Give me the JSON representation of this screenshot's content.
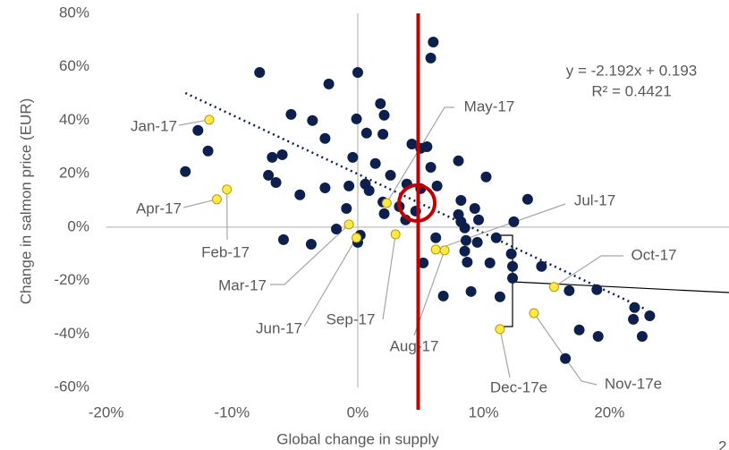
{
  "chart_data": {
    "type": "scatter",
    "x_label": "Global change in supply",
    "y_label": "Change in salmon price (EUR)",
    "xlim": [
      -20,
      29.5
    ],
    "ylim": [
      -60,
      80
    ],
    "xticks": [
      {
        "value": -20,
        "label": "-20%"
      },
      {
        "value": -10,
        "label": "-10%"
      },
      {
        "value": 0,
        "label": "0%"
      },
      {
        "value": 10,
        "label": "10%"
      },
      {
        "value": 20,
        "label": "20%"
      }
    ],
    "yticks": [
      {
        "value": -60,
        "label": "-60%"
      },
      {
        "value": -40,
        "label": "-40%"
      },
      {
        "value": -20,
        "label": "-20%"
      },
      {
        "value": 0,
        "label": "0%"
      },
      {
        "value": 20,
        "label": "20%"
      },
      {
        "value": 40,
        "label": "40%"
      },
      {
        "value": 60,
        "label": "60%"
      },
      {
        "value": 80,
        "label": "80%"
      }
    ],
    "series": [
      {
        "color": "#0d1f4d",
        "x": [
          6.0,
          5.8,
          -7.8,
          0,
          -2.3,
          1.8,
          2.1,
          -5.3,
          -3.6,
          -0.1,
          -12.7,
          0.7,
          -2.6,
          2.0,
          4.3,
          5.0,
          5.5,
          -11.9,
          -6.8,
          -6.0,
          -0.4,
          1.4,
          5.8,
          8.0,
          -13.7,
          -7.1,
          -6.5,
          -4.6,
          -2.6,
          -0.7,
          0.6,
          0.9,
          2.6,
          3.9,
          5.0,
          6.3,
          10.2,
          2.0,
          3.3,
          4.6,
          2.1,
          3.8,
          8.2,
          9.3,
          8.0,
          8.2,
          9.6,
          8.5,
          12.4,
          13.5,
          -0.9,
          -1.7,
          0.2,
          0,
          -5.9,
          -3.7,
          5.2,
          6.2,
          8.6,
          9.5,
          8.5,
          8.7,
          11.0,
          10.5,
          12.2,
          12.3,
          12.3,
          14.6,
          9.0,
          6.8,
          11.3,
          16.8,
          19.0,
          22.0,
          23.2,
          21.9,
          17.6,
          19.1,
          22.6,
          16.5
        ],
        "values": [
          69.3,
          63.3,
          57.9,
          57.9,
          53.6,
          46.2,
          41.9,
          42.2,
          39.9,
          40.5,
          36.2,
          35.2,
          33.2,
          34.8,
          31.1,
          29.5,
          30.1,
          28.5,
          26.1,
          27.1,
          26.1,
          23.8,
          22.4,
          24.8,
          20.8,
          19.4,
          16.7,
          12.1,
          14.7,
          15.4,
          16.1,
          13.7,
          19.4,
          16.1,
          14.4,
          15.4,
          18.8,
          9.4,
          7.7,
          6.0,
          5.0,
          2.7,
          10.0,
          7.0,
          4.7,
          2.0,
          2.7,
          -0.3,
          2.0,
          10.4,
          7.0,
          -0.7,
          -3.0,
          -5.7,
          -4.7,
          -6.4,
          -13.4,
          -4.0,
          -5.0,
          -5.7,
          -9.0,
          -13.1,
          -4.0,
          -13.4,
          -10.0,
          -14.7,
          -19.1,
          -14.7,
          -24.1,
          -25.8,
          -26.1,
          -23.8,
          -23.4,
          -30.1,
          -33.2,
          -34.5,
          -38.5,
          -40.9,
          -40.9,
          -49.2
        ]
      },
      {
        "color": "#ffe84a",
        "labels": [
          "Jan-17",
          "Apr-17",
          "Feb-17",
          "Mar-17",
          "Jun-17",
          "Sep-17",
          "May-17",
          "Jul-17",
          "Aug-17",
          "Oct-17",
          "Nov-17e",
          "Dec-17e"
        ],
        "x": [
          -11.8,
          -11.2,
          -10.4,
          -0.7,
          -0.1,
          3.0,
          2.3,
          6.2,
          6.9,
          15.6,
          14.0,
          11.3
        ],
        "values": [
          40.2,
          10.4,
          14.1,
          1.0,
          -4.0,
          -2.7,
          9.0,
          -8.4,
          -8.7,
          -22.4,
          -32.2,
          -38.2
        ]
      }
    ],
    "trendline": {
      "x": [
        -13.7,
        22.9
      ],
      "values": [
        50.2,
        -30.8
      ],
      "color": "#0d1f4d"
    },
    "equation": "y = -2.192x + 0.193",
    "r_squared": "R² = 0.4421",
    "vertical_line": {
      "x": 4.8,
      "color": "#c00000"
    },
    "highlight_circle": {
      "x": 4.7,
      "values": 9.0,
      "color": "#c00000"
    },
    "page_number": "2"
  }
}
